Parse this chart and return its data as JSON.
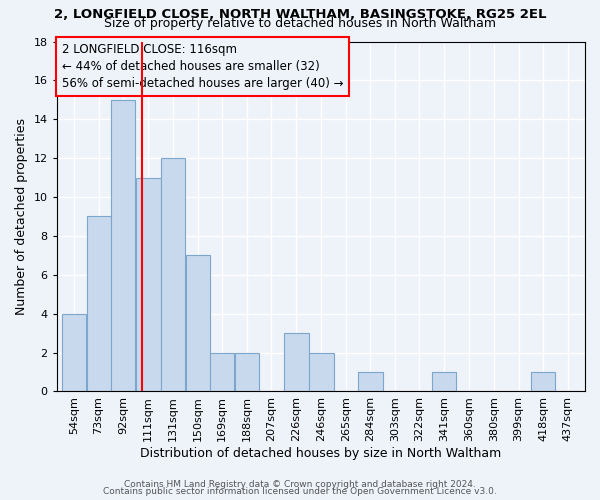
{
  "title1": "2, LONGFIELD CLOSE, NORTH WALTHAM, BASINGSTOKE, RG25 2EL",
  "title2": "Size of property relative to detached houses in North Waltham",
  "xlabel": "Distribution of detached houses by size in North Waltham",
  "ylabel": "Number of detached properties",
  "bin_labels": [
    "54sqm",
    "73sqm",
    "92sqm",
    "111sqm",
    "131sqm",
    "150sqm",
    "169sqm",
    "188sqm",
    "207sqm",
    "226sqm",
    "246sqm",
    "265sqm",
    "284sqm",
    "303sqm",
    "322sqm",
    "341sqm",
    "360sqm",
    "380sqm",
    "399sqm",
    "418sqm",
    "437sqm"
  ],
  "bar_values": [
    4,
    9,
    15,
    11,
    12,
    7,
    2,
    2,
    0,
    3,
    2,
    0,
    1,
    0,
    0,
    1,
    0,
    0,
    0,
    1,
    0
  ],
  "bar_left_edges": [
    54,
    73,
    92,
    111,
    131,
    150,
    169,
    188,
    207,
    226,
    246,
    265,
    284,
    303,
    322,
    341,
    360,
    380,
    399,
    418,
    437
  ],
  "bar_widths": [
    19,
    19,
    19,
    20,
    19,
    19,
    19,
    19,
    19,
    20,
    19,
    19,
    19,
    19,
    19,
    19,
    20,
    19,
    19,
    19,
    19
  ],
  "bar_color": "#c9d9ed",
  "bar_edge_color": "#7da6cc",
  "property_line_x": 116,
  "property_line_color": "red",
  "ylim": [
    0,
    18
  ],
  "yticks": [
    0,
    2,
    4,
    6,
    8,
    10,
    12,
    14,
    16,
    18
  ],
  "annotation_line1": "2 LONGFIELD CLOSE: 116sqm",
  "annotation_line2": "← 44% of detached houses are smaller (32)",
  "annotation_line3": "56% of semi-detached houses are larger (40) →",
  "annotation_box_color": "red",
  "footer1": "Contains HM Land Registry data © Crown copyright and database right 2024.",
  "footer2": "Contains public sector information licensed under the Open Government Licence v3.0.",
  "background_color": "#eef2f9",
  "grid_color": "#ffffff",
  "title1_fontsize": 9.5,
  "title2_fontsize": 9,
  "axis_label_fontsize": 9,
  "tick_fontsize": 8,
  "annotation_fontsize": 8.5,
  "footer_fontsize": 6.5
}
